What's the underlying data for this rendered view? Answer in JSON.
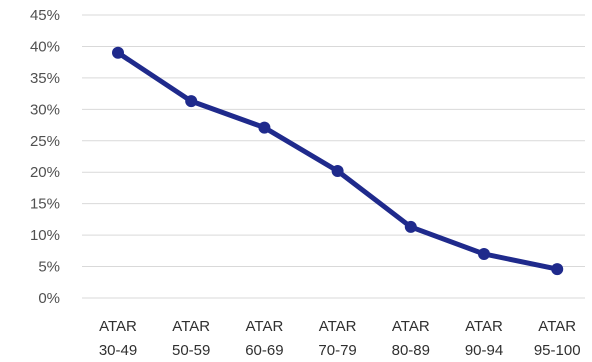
{
  "chart_data": {
    "type": "line",
    "title": "",
    "xlabel": "",
    "ylabel": "",
    "categories": [
      [
        "ATAR",
        "30-49"
      ],
      [
        "ATAR",
        "50-59"
      ],
      [
        "ATAR",
        "60-69"
      ],
      [
        "ATAR",
        "70-79"
      ],
      [
        "ATAR",
        "80-89"
      ],
      [
        "ATAR",
        "90-94"
      ],
      [
        "ATAR",
        "95-100"
      ]
    ],
    "series": [
      {
        "values": [
          39,
          31.3,
          27.1,
          20.2,
          11.3,
          7.0,
          4.6
        ]
      }
    ],
    "ylim": [
      0,
      45
    ],
    "yticks": [
      0,
      5,
      10,
      15,
      20,
      25,
      30,
      35,
      40,
      45
    ],
    "ytick_format": "percent",
    "grid": true,
    "colors": {
      "line": "#1f2a8c",
      "grid": "#d9d9d9"
    }
  }
}
